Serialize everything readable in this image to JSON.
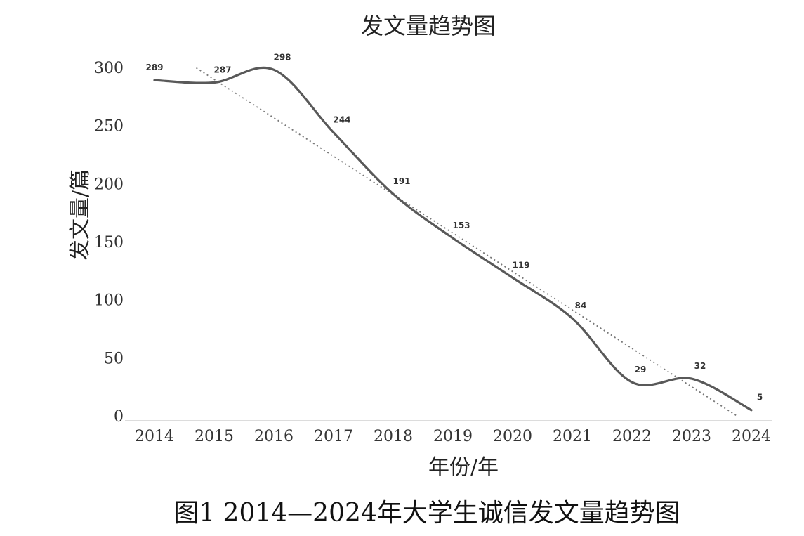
{
  "chart_data": {
    "type": "line",
    "title": "发文量趋势图",
    "xlabel": "年份/年",
    "ylabel": "发文量/篇",
    "categories": [
      "2014",
      "2015",
      "2016",
      "2017",
      "2018",
      "2019",
      "2020",
      "2021",
      "2022",
      "2023",
      "2024"
    ],
    "series": [
      {
        "values": [
          289,
          287,
          298,
          244,
          191,
          153,
          119,
          84,
          29,
          32,
          5
        ],
        "data_labels": [
          "289",
          "287",
          "298",
          "244",
          "191",
          "153",
          "119",
          "84",
          "29",
          "32",
          "5"
        ],
        "color": "#595959",
        "smooth": true
      }
    ],
    "trendline": {
      "type": "linear",
      "style": "dotted",
      "color": "#777777"
    },
    "ylim": [
      0,
      300
    ],
    "yticks": [
      "0",
      "50",
      "100",
      "150",
      "200",
      "250",
      "300"
    ],
    "grid": false,
    "legend": "none"
  },
  "caption": "图1 2014—2024年大学生诚信发文量趋势图"
}
